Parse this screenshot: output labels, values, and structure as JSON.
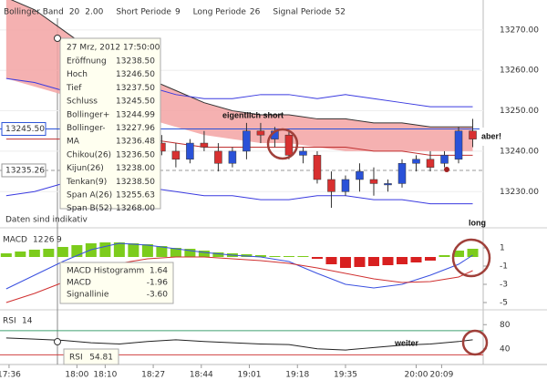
{
  "chart_data": [
    {
      "type": "candlestick",
      "header": [
        {
          "text": "Bollinger Band",
          "color": "#555"
        },
        {
          "text": "20",
          "color": "#2040c0"
        },
        {
          "text": "2.00",
          "color": "#2040c0"
        },
        {
          "text": "Short Periode",
          "color": "#555"
        },
        {
          "text": "9",
          "color": "#555"
        },
        {
          "text": "Long Periode",
          "color": "#555"
        },
        {
          "text": "26",
          "color": "#555"
        },
        {
          "text": "Signal Periode",
          "color": "#555"
        },
        {
          "text": "52",
          "color": "#555"
        }
      ],
      "x": [
        1110,
        1115,
        1120,
        1125,
        1130,
        1135,
        1140,
        1145,
        1150,
        1155,
        1160,
        1165,
        1170,
        1175,
        1180,
        1185,
        1190,
        1195,
        1200,
        1205,
        1210,
        1215,
        1220
      ],
      "open": [
        13242,
        13240,
        13238,
        13242,
        13240,
        13237,
        13240,
        13245,
        13243,
        13244,
        13239,
        13239,
        13233,
        13230,
        13233,
        13233,
        13232,
        13232,
        13237,
        13238,
        13237,
        13238,
        13245
      ],
      "high": [
        13244,
        13242,
        13243,
        13245,
        13242,
        13241,
        13247,
        13247,
        13246,
        13245,
        13241,
        13240,
        13235,
        13234,
        13237,
        13236,
        13233,
        13238,
        13239,
        13240,
        13240,
        13246,
        13248
      ],
      "low": [
        13239,
        13236,
        13237,
        13240,
        13235,
        13236,
        13238,
        13242,
        13241,
        13238,
        13237,
        13232,
        13226,
        13229,
        13230,
        13229,
        13230,
        13231,
        13235,
        13235,
        13236,
        13237,
        13241
      ],
      "close": [
        13240,
        13238,
        13242,
        13241,
        13237,
        13240,
        13245,
        13244,
        13245,
        13239,
        13240,
        13233,
        13230,
        13233,
        13235,
        13232,
        13232,
        13237,
        13238,
        13236,
        13239,
        13245,
        13243
      ],
      "up_color": "#2a52d8",
      "down_color": "#d83030",
      "bands": {
        "x": [
          1055,
          1065,
          1075,
          1085,
          1095,
          1105,
          1115,
          1125,
          1135,
          1145,
          1155,
          1165,
          1175,
          1185,
          1195,
          1205,
          1215,
          1220
        ],
        "upper": [
          13258,
          13257,
          13255,
          13254,
          13255,
          13256,
          13254,
          13253,
          13253,
          13254,
          13254,
          13253,
          13254,
          13253,
          13252,
          13251,
          13251,
          13251
        ],
        "middle": [
          13243,
          13243,
          13243,
          13243,
          13243,
          13243,
          13242,
          13241,
          13241,
          13241,
          13241,
          13241,
          13241,
          13240,
          13240,
          13239,
          13239,
          13239
        ],
        "lower": [
          13229,
          13230,
          13232,
          13233,
          13232,
          13231,
          13230,
          13229,
          13229,
          13228,
          13228,
          13229,
          13229,
          13228,
          13228,
          13227,
          13227,
          13227
        ],
        "span_b": [
          13278,
          13275,
          13270,
          13265,
          13262,
          13258,
          13255,
          13252,
          13250,
          13249,
          13249,
          13248,
          13248,
          13247,
          13247,
          13246,
          13246,
          13246
        ],
        "span_a": [
          13258,
          13256,
          13254,
          13252,
          13250,
          13248,
          13246,
          13244,
          13243,
          13242,
          13242,
          13241,
          13240,
          13240,
          13240,
          13240,
          13240,
          13240
        ],
        "band_color": "#3a3ae0",
        "middle_color": "#c03030",
        "cloud_color": "#f3a3a3"
      },
      "price_lines": [
        {
          "value": 13245.5,
          "label": "13245.50",
          "color": "#2a52d8"
        },
        {
          "value": 13235.26,
          "label": "13235.26",
          "color": "#999"
        }
      ],
      "xlim": [
        1052.8,
        1223.7
      ],
      "xticks": [
        {
          "value": 1056,
          "label": "17:36"
        },
        {
          "value": 1080,
          "label": "18:00"
        },
        {
          "value": 1090,
          "label": "18:10"
        },
        {
          "value": 1107,
          "label": "18:27"
        },
        {
          "value": 1124,
          "label": "18:44"
        },
        {
          "value": 1141,
          "label": "19:01"
        },
        {
          "value": 1158,
          "label": "19:18"
        },
        {
          "value": 1175,
          "label": "19:35"
        },
        {
          "value": 1200,
          "label": "20:00"
        },
        {
          "value": 1209,
          "label": "20:09"
        }
      ],
      "ylim": [
        13221.5,
        13277.4
      ],
      "yticks": [
        {
          "value": 13230,
          "label": "13230.00"
        },
        {
          "value": 13240,
          "label": "13240.00"
        },
        {
          "value": 13250,
          "label": "13250.00"
        },
        {
          "value": 13260,
          "label": "13260.00"
        },
        {
          "value": 13270,
          "label": "13270.00"
        }
      ],
      "grid": true,
      "note": "Daten sind indikativ",
      "annotations": [
        "eigentlich short",
        "aber!"
      ],
      "tooltip": {
        "date": "27 Mrz, 2012 17:50:00",
        "rows": [
          {
            "label": "Eröffnung",
            "value": "13238.50",
            "color": "#333"
          },
          {
            "label": "Hoch",
            "value": "13246.50",
            "color": "#333"
          },
          {
            "label": "Tief",
            "value": "13237.50",
            "color": "#333"
          },
          {
            "label": "Schluss",
            "value": "13245.50",
            "color": "#20b0d0"
          },
          {
            "label": "Bollinger+",
            "value": "13244.99",
            "color": "#2a3ae0"
          },
          {
            "label": "Bollinger-",
            "value": "13227.96",
            "color": "#2a3ae0"
          },
          {
            "label": "MA",
            "value": "13236.48",
            "color": "#222"
          },
          {
            "label": "Chikou(26)",
            "value": "13236.50",
            "color": "#9030a0"
          },
          {
            "label": "Kijun(26)",
            "value": "13238.00",
            "color": "#2a3ae0"
          },
          {
            "label": "Tenkan(9)",
            "value": "13238.50",
            "color": "#d03030"
          },
          {
            "label": "Span A(26)",
            "value": "13255.63",
            "color": "#222"
          },
          {
            "label": "Span B(52)",
            "value": "13268.00",
            "color": "#aaa"
          }
        ]
      }
    },
    {
      "type": "macd",
      "labels": [
        {
          "text": "MACD",
          "color": "#333"
        },
        {
          "text": "12",
          "color": "#d03030"
        },
        {
          "text": "26",
          "color": "#40a020"
        },
        {
          "text": "9",
          "color": "#40a020"
        }
      ],
      "hist_x": [
        1055,
        1060,
        1065,
        1070,
        1075,
        1080,
        1085,
        1090,
        1095,
        1100,
        1105,
        1110,
        1115,
        1120,
        1125,
        1130,
        1135,
        1140,
        1145,
        1150,
        1155,
        1160,
        1165,
        1170,
        1175,
        1180,
        1185,
        1190,
        1195,
        1200,
        1205,
        1210,
        1215,
        1220
      ],
      "histogram": [
        0.4,
        0.6,
        0.8,
        0.9,
        1.1,
        1.3,
        1.5,
        1.6,
        1.6,
        1.5,
        1.4,
        1.2,
        1.0,
        0.9,
        0.7,
        0.5,
        0.4,
        0.3,
        0.2,
        0.1,
        0.1,
        0.1,
        -0.2,
        -0.8,
        -1.2,
        -1.1,
        -1.0,
        -0.9,
        -0.8,
        -0.6,
        -0.4,
        0.2,
        0.7,
        0.9
      ],
      "pos_color": "#7ccc1c",
      "neg_color": "#d82020",
      "x": [
        1055,
        1065,
        1075,
        1085,
        1095,
        1105,
        1115,
        1125,
        1135,
        1145,
        1155,
        1165,
        1175,
        1185,
        1195,
        1205,
        1215,
        1220
      ],
      "series": [
        {
          "name": "MACD",
          "color": "#3a50e0",
          "values": [
            -3.5,
            -2.0,
            -0.5,
            0.8,
            1.5,
            1.3,
            0.9,
            0.5,
            0.2,
            0.0,
            -0.5,
            -1.8,
            -3.0,
            -3.4,
            -3.0,
            -2.0,
            -0.8,
            0.2
          ]
        },
        {
          "name": "Signallinie",
          "color": "#d03030",
          "values": [
            -5,
            -4,
            -2.8,
            -1.6,
            -0.7,
            -0.2,
            0.0,
            0.0,
            -0.2,
            -0.4,
            -0.7,
            -1.2,
            -1.8,
            -2.4,
            -2.8,
            -2.7,
            -2.2,
            -1.5
          ]
        }
      ],
      "ylim": [
        -5.5,
        2.5
      ],
      "yticks": [
        1,
        -1,
        -3,
        -5
      ],
      "annotations": [
        "long"
      ],
      "tooltip": [
        {
          "label": "MACD Histogramm",
          "value": "1.64",
          "color": "#40a020"
        },
        {
          "label": "MACD",
          "value": "-1.96",
          "color": "#3a50e0"
        },
        {
          "label": "Signallinie",
          "value": "-3.60",
          "color": "#d03030"
        }
      ]
    },
    {
      "type": "rsi",
      "labels": [
        {
          "text": "RSI",
          "color": "#333"
        },
        {
          "text": "14",
          "color": "#333"
        }
      ],
      "x": [
        1055,
        1065,
        1075,
        1085,
        1095,
        1105,
        1115,
        1125,
        1135,
        1145,
        1155,
        1165,
        1175,
        1185,
        1195,
        1205,
        1215,
        1220
      ],
      "values": [
        58,
        56,
        54,
        50,
        48,
        52,
        55,
        52,
        50,
        48,
        47,
        40,
        38,
        42,
        46,
        48,
        52,
        55
      ],
      "color": "#222",
      "levels": [
        {
          "value": 70,
          "color": "#40a070"
        },
        {
          "value": 30,
          "color": "#d04040"
        }
      ],
      "ylim": [
        18.5,
        97
      ],
      "yticks": [
        80,
        40
      ],
      "annotations": [
        "weiter"
      ],
      "tooltip": {
        "label": "RSI",
        "value": "54.81"
      }
    }
  ]
}
